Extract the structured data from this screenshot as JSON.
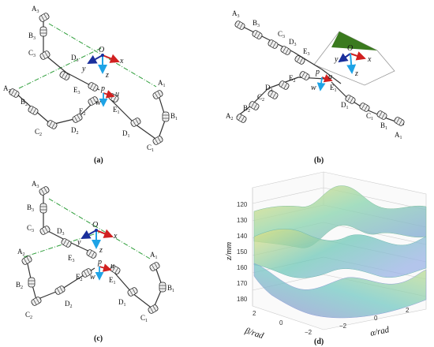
{
  "colors": {
    "link": "#333333",
    "dashdot": "#2e9e3a",
    "axis_x": "#d12020",
    "axis_y": "#1a2f9c",
    "axis_z": "#1ea3e6",
    "surface_top": "#f3e27a",
    "surface_mid": "#7fd0b0",
    "surface_low": "#8aa6e0",
    "plane_green": "#3a7a1e"
  },
  "panels": {
    "a": {
      "caption": "(a)",
      "labels": {
        "A3": "A",
        "A3s": "3",
        "B3": "B",
        "B3s": "3",
        "C3": "C",
        "C3s": "3",
        "D3": "D",
        "D3s": "3",
        "E3": "E",
        "E3s": "3",
        "A2": "A",
        "A2s": "2",
        "B2": "B",
        "B2s": "2",
        "C2": "C",
        "C2s": "2",
        "D2": "D",
        "D2s": "2",
        "E2": "E",
        "E2s": "2",
        "A1": "A",
        "A1s": "1",
        "B1": "B",
        "B1s": "1",
        "C1": "C",
        "C1s": "1",
        "D1": "D",
        "D1s": "1",
        "E1": "E",
        "E1s": "1",
        "O": "O",
        "x": "x",
        "y": "y",
        "z": "z",
        "p": "p",
        "u": "u",
        "w": "w"
      }
    },
    "b": {
      "caption": "(b)",
      "labels": {
        "A3": "A",
        "A3s": "3",
        "B3": "B",
        "B3s": "3",
        "C3": "C",
        "C3s": "3",
        "D3": "D",
        "D3s": "3",
        "E3": "E",
        "E3s": "3",
        "A2": "A",
        "A2s": "2",
        "B2": "B",
        "B2s": "2",
        "C2": "C",
        "C2s": "2",
        "D2": "D",
        "D2s": "2",
        "E2": "E",
        "E2s": "2",
        "A1": "A",
        "A1s": "1",
        "B1": "B",
        "B1s": "1",
        "C1": "C",
        "C1s": "1",
        "D1": "D",
        "D1s": "1",
        "E1": "E",
        "E1s": "1",
        "O": "O",
        "x": "x",
        "y": "y",
        "z": "z",
        "p": "p",
        "u": "u",
        "w": "w"
      }
    },
    "c": {
      "caption": "(c)",
      "labels": {
        "A3": "A",
        "A3s": "3",
        "B3": "B",
        "B3s": "3",
        "C3": "C",
        "C3s": "3",
        "D3": "D",
        "D3s": "3",
        "E3": "E",
        "E3s": "3",
        "A2": "A",
        "A2s": "2",
        "B2": "B",
        "B2s": "2",
        "C2": "C",
        "C2s": "2",
        "D2": "D",
        "D2s": "2",
        "E2": "E",
        "E2s": "2",
        "A1": "A",
        "A1s": "1",
        "B1": "B",
        "B1s": "1",
        "C1": "C",
        "C1s": "1",
        "D1": "D",
        "D1s": "1",
        "E1": "E",
        "E1s": "1",
        "O": "O",
        "x": "x",
        "y": "y",
        "z": "z",
        "p": "p",
        "u": "u",
        "w": "w"
      }
    },
    "d": {
      "caption": "(d)",
      "zlabel": "z/mm",
      "alphalabel": "α/rad",
      "betalabel": "β/rad",
      "zticks": [
        "120",
        "130",
        "140",
        "150",
        "160",
        "170",
        "180"
      ],
      "alphaticks": [
        "−2",
        "0",
        "2"
      ],
      "betaticks": [
        "2",
        "0",
        "−2"
      ]
    }
  }
}
